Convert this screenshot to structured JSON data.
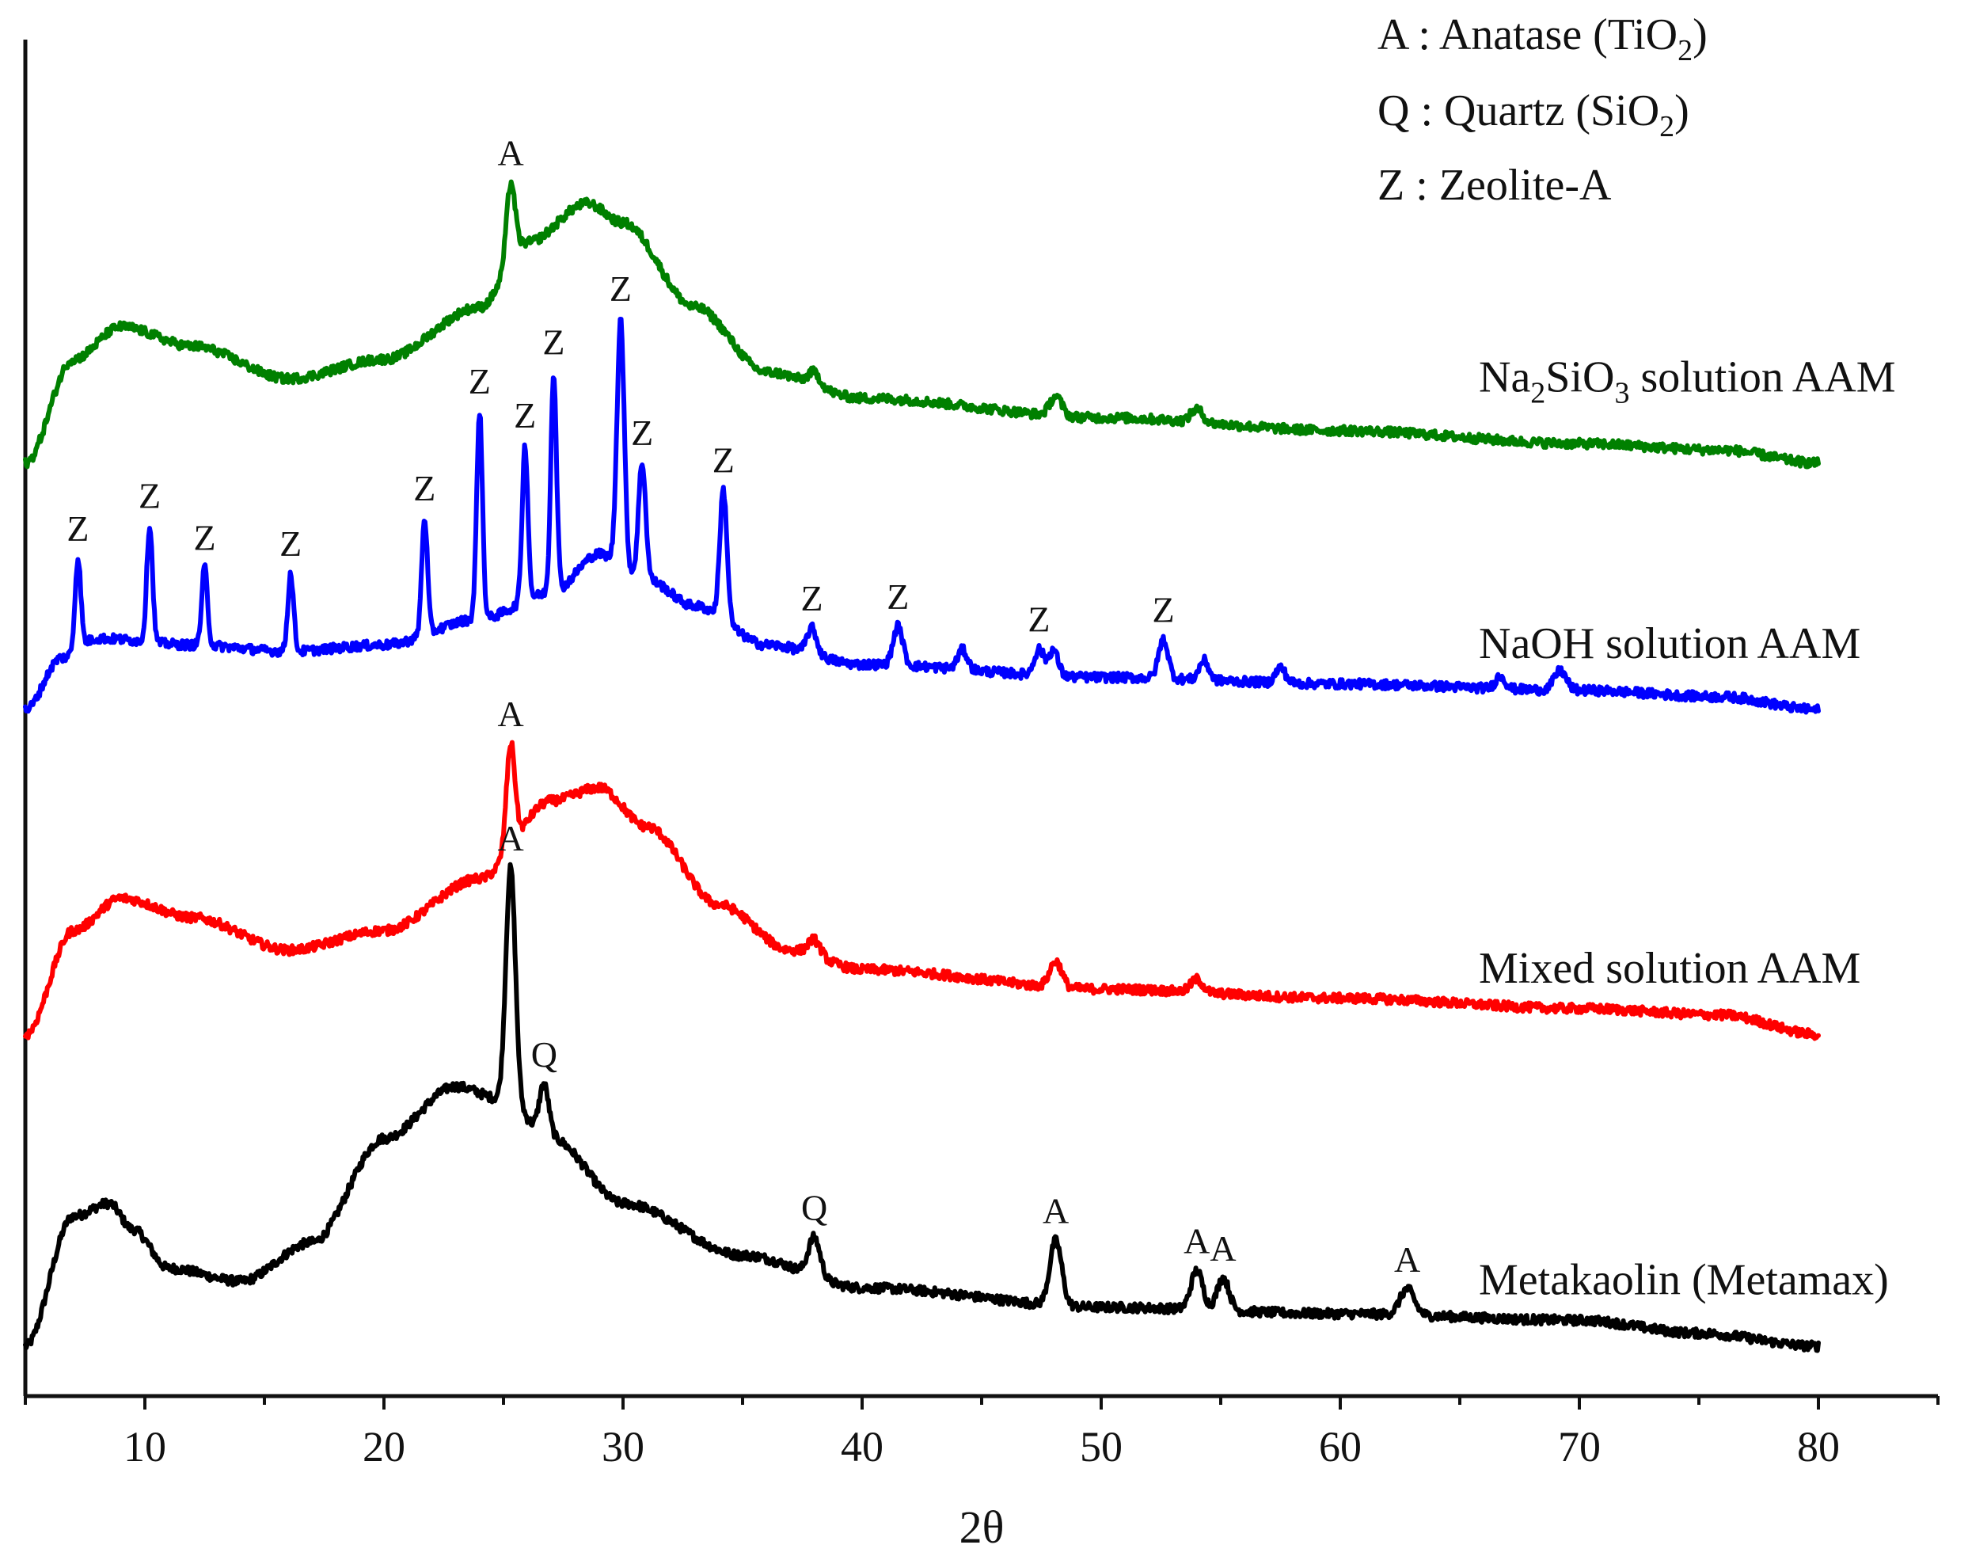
{
  "chart_data": {
    "type": "line",
    "title": "",
    "xlabel": "2θ",
    "ylabel": "",
    "xlim": [
      5,
      85
    ],
    "ylim": [
      0,
      100
    ],
    "xticks": [
      10,
      20,
      30,
      40,
      50,
      60,
      70,
      80
    ],
    "grid": false,
    "legend": {
      "placement": "top-right",
      "entries": [
        {
          "key": "A",
          "sep": " : ",
          "name": "Anatase (TiO",
          "sub": "2",
          "close": ")"
        },
        {
          "key": "Q",
          "sep": " : ",
          "name": "Quartz (SiO",
          "sub": "2",
          "close": ")"
        },
        {
          "key": "Z",
          "sep": " : ",
          "name": "Zeolite-A",
          "sub": "",
          "close": ""
        }
      ]
    },
    "series": [
      {
        "id": "metakaolin",
        "name": "Metakaolin (Metamax)",
        "color": "#000000",
        "offset": 0,
        "labelY": 4,
        "base": [
          [
            5,
            0
          ],
          [
            7,
            10
          ],
          [
            8.5,
            11
          ],
          [
            9.5,
            9
          ],
          [
            11,
            6
          ],
          [
            14,
            5
          ],
          [
            17,
            8
          ],
          [
            20,
            16
          ],
          [
            23,
            20
          ],
          [
            25,
            19
          ],
          [
            27,
            16
          ],
          [
            30,
            11
          ],
          [
            35,
            7
          ],
          [
            40,
            4.5
          ],
          [
            50,
            3
          ],
          [
            60,
            2.5
          ],
          [
            70,
            2
          ],
          [
            75,
            1
          ],
          [
            80,
            0
          ]
        ],
        "peaks": [
          {
            "x": 25.3,
            "h": 18,
            "w": 0.2,
            "label": "A"
          },
          {
            "x": 26.7,
            "h": 4,
            "w": 0.2,
            "label": "Q"
          },
          {
            "x": 38.0,
            "h": 3,
            "w": 0.25,
            "label": "Q"
          },
          {
            "x": 48.1,
            "h": 5,
            "w": 0.25,
            "label": "A"
          },
          {
            "x": 54.0,
            "h": 3,
            "w": 0.25,
            "label": "A"
          },
          {
            "x": 55.1,
            "h": 2.5,
            "w": 0.25,
            "label": "A"
          },
          {
            "x": 62.8,
            "h": 2,
            "w": 0.3,
            "label": "A"
          }
        ]
      },
      {
        "id": "mixed",
        "name": "Mixed solution AAM",
        "color": "#ff0000",
        "offset": 24,
        "labelY": 28,
        "base": [
          [
            5,
            0
          ],
          [
            7,
            8
          ],
          [
            9,
            10.5
          ],
          [
            12,
            9
          ],
          [
            16,
            6.5
          ],
          [
            20,
            8
          ],
          [
            24,
            12
          ],
          [
            27,
            18
          ],
          [
            29,
            19
          ],
          [
            31,
            16
          ],
          [
            34,
            10
          ],
          [
            37,
            6.5
          ],
          [
            40,
            5
          ],
          [
            50,
            3.5
          ],
          [
            60,
            2.8
          ],
          [
            70,
            2
          ],
          [
            76,
            1.5
          ],
          [
            80,
            0
          ]
        ],
        "peaks": [
          {
            "x": 25.3,
            "h": 8,
            "w": 0.18,
            "label": "A"
          },
          {
            "x": 38.0,
            "h": 1.2,
            "w": 0.25,
            "label": ""
          },
          {
            "x": 48.1,
            "h": 2,
            "w": 0.25,
            "label": ""
          },
          {
            "x": 54.0,
            "h": 1,
            "w": 0.25,
            "label": ""
          }
        ]
      },
      {
        "id": "naoh",
        "name": "NaOH solution AAM",
        "color": "#0000ff",
        "offset": 49,
        "labelY": 53,
        "base": [
          [
            5,
            0
          ],
          [
            6.5,
            4
          ],
          [
            8,
            5.5
          ],
          [
            12,
            5
          ],
          [
            16,
            4.5
          ],
          [
            20,
            5
          ],
          [
            24,
            7
          ],
          [
            27,
            9
          ],
          [
            29,
            12
          ],
          [
            31,
            10
          ],
          [
            33,
            8
          ],
          [
            36,
            5
          ],
          [
            40,
            3.5
          ],
          [
            50,
            2.5
          ],
          [
            60,
            2
          ],
          [
            70,
            1.5
          ],
          [
            76,
            1
          ],
          [
            80,
            0
          ]
        ],
        "peaks": [
          {
            "x": 7.2,
            "h": 7,
            "w": 0.12,
            "label": "Z"
          },
          {
            "x": 10.2,
            "h": 9,
            "w": 0.12,
            "label": "Z"
          },
          {
            "x": 12.5,
            "h": 6,
            "w": 0.12,
            "label": "Z"
          },
          {
            "x": 16.1,
            "h": 6,
            "w": 0.12,
            "label": "Z"
          },
          {
            "x": 21.7,
            "h": 9,
            "w": 0.12,
            "label": "Z"
          },
          {
            "x": 24.0,
            "h": 16,
            "w": 0.12,
            "label": "Z"
          },
          {
            "x": 25.9,
            "h": 12,
            "w": 0.12,
            "label": "Z"
          },
          {
            "x": 27.1,
            "h": 17,
            "w": 0.12,
            "label": "Z"
          },
          {
            "x": 29.9,
            "h": 19,
            "w": 0.15,
            "label": "Z"
          },
          {
            "x": 30.8,
            "h": 9,
            "w": 0.15,
            "label": "Z"
          },
          {
            "x": 34.2,
            "h": 10,
            "w": 0.15,
            "label": "Z"
          },
          {
            "x": 37.9,
            "h": 2,
            "w": 0.2,
            "label": "Z"
          },
          {
            "x": 41.5,
            "h": 3,
            "w": 0.2,
            "label": "Z"
          },
          {
            "x": 47.4,
            "h": 2,
            "w": 0.2,
            "label": "Z"
          },
          {
            "x": 52.6,
            "h": 3,
            "w": 0.2,
            "label": "Z"
          },
          {
            "x": 44.2,
            "h": 1.5,
            "w": 0.2,
            "label": ""
          },
          {
            "x": 48.0,
            "h": 2,
            "w": 0.2,
            "label": ""
          },
          {
            "x": 54.3,
            "h": 1.5,
            "w": 0.2,
            "label": ""
          },
          {
            "x": 57.5,
            "h": 1.2,
            "w": 0.2,
            "label": ""
          },
          {
            "x": 66.7,
            "h": 1,
            "w": 0.2,
            "label": ""
          },
          {
            "x": 69.2,
            "h": 1.5,
            "w": 0.25,
            "label": ""
          }
        ]
      },
      {
        "id": "na2sio3",
        "name": "solution AAM",
        "namePrefix": "Na",
        "nameSub1": "2",
        "nameMid": "SiO",
        "nameSub2": "3",
        "color": "#008000",
        "offset": 68,
        "labelY": 73.5,
        "base": [
          [
            5,
            0
          ],
          [
            7,
            8
          ],
          [
            9,
            10.5
          ],
          [
            12,
            9
          ],
          [
            16,
            6.5
          ],
          [
            20,
            8
          ],
          [
            24,
            12
          ],
          [
            26,
            17
          ],
          [
            28.5,
            20
          ],
          [
            30,
            18.5
          ],
          [
            33,
            12
          ],
          [
            36,
            7
          ],
          [
            40,
            5
          ],
          [
            50,
            3.5
          ],
          [
            60,
            2.5
          ],
          [
            70,
            1.5
          ],
          [
            76,
            1
          ],
          [
            80,
            0
          ]
        ],
        "peaks": [
          {
            "x": 25.3,
            "h": 6,
            "w": 0.18,
            "label": "A"
          },
          {
            "x": 38.0,
            "h": 1,
            "w": 0.25,
            "label": ""
          },
          {
            "x": 48.1,
            "h": 1.5,
            "w": 0.25,
            "label": ""
          },
          {
            "x": 54.0,
            "h": 1,
            "w": 0.25,
            "label": ""
          }
        ]
      }
    ]
  }
}
